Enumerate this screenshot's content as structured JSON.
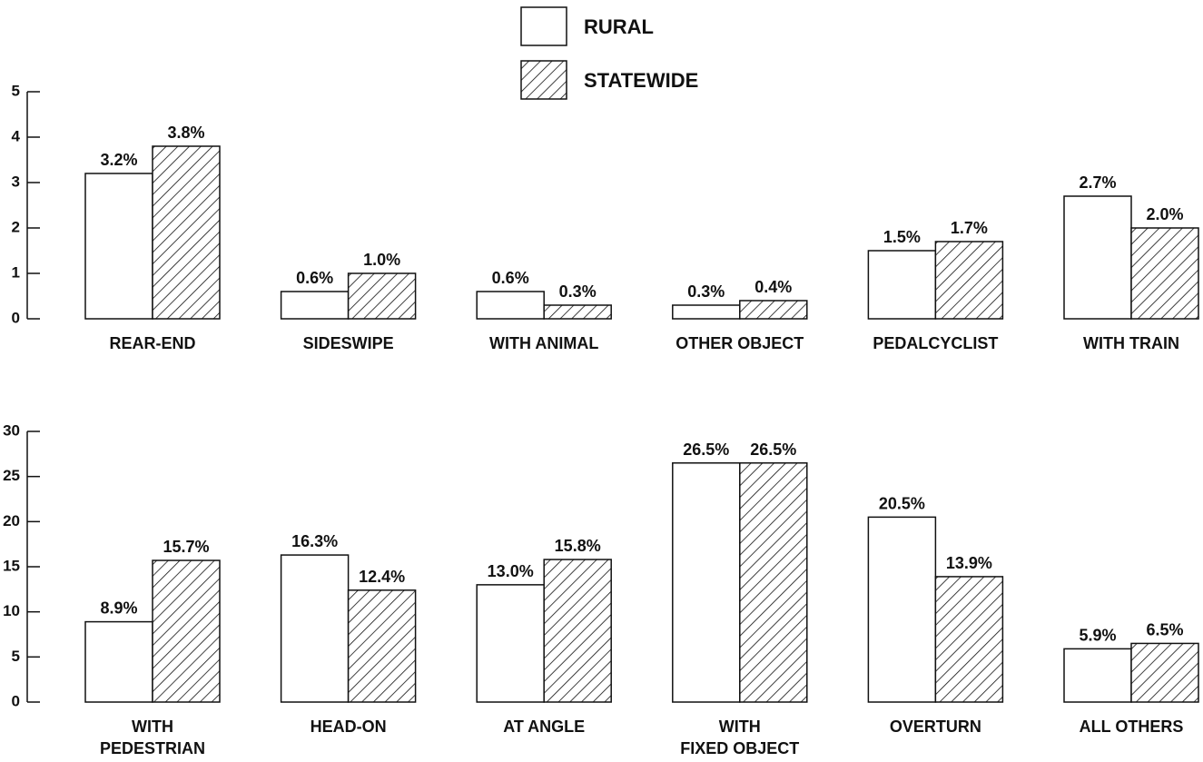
{
  "chart_data": [
    {
      "type": "bar",
      "categories": [
        "REAR-END",
        "SIDESWIPE",
        "WITH ANIMAL",
        "OTHER OBJECT",
        "PEDALCYCLIST",
        "WITH TRAIN"
      ],
      "series": [
        {
          "name": "RURAL",
          "color": "#ffffff",
          "values": [
            3.2,
            0.6,
            0.6,
            0.3,
            1.5,
            2.7
          ],
          "value_labels": [
            "3.2%",
            "0.6%",
            "0.6%",
            "0.3%",
            "1.5%",
            "2.7%"
          ]
        },
        {
          "name": "STATEWIDE",
          "color": "#ffffff",
          "hatch": true,
          "values": [
            3.8,
            1.0,
            0.3,
            0.4,
            1.7,
            2.0
          ],
          "value_labels": [
            "3.8%",
            "1.0%",
            "0.3%",
            "0.4%",
            "1.7%",
            "2.0%"
          ]
        }
      ],
      "ylim": [
        0,
        5
      ],
      "yticks": [
        0,
        1,
        2,
        3,
        4,
        5
      ]
    },
    {
      "type": "bar",
      "categories": [
        "WITH\nPEDESTRIAN",
        "HEAD-ON",
        "AT ANGLE",
        "WITH\nFIXED OBJECT",
        "OVERTURN",
        "ALL OTHERS"
      ],
      "series": [
        {
          "color": "#ffffff",
          "values": [
            8.9,
            16.3,
            13.0,
            26.5,
            20.5,
            5.9
          ],
          "value_labels": [
            "8.9%",
            "16.3%",
            "13.0%",
            "26.5%",
            "20.5%",
            "5.9%"
          ]
        },
        {
          "color": "#ffffff",
          "hatch": true,
          "values": [
            15.7,
            12.4,
            15.8,
            26.5,
            13.9,
            6.5
          ],
          "value_labels": [
            "15.7%",
            "12.4%",
            "15.8%",
            "26.5%",
            "13.9%",
            "6.5%"
          ]
        }
      ],
      "ylim": [
        0,
        30
      ],
      "yticks": [
        0,
        5,
        10,
        15,
        20,
        25,
        30
      ]
    }
  ]
}
